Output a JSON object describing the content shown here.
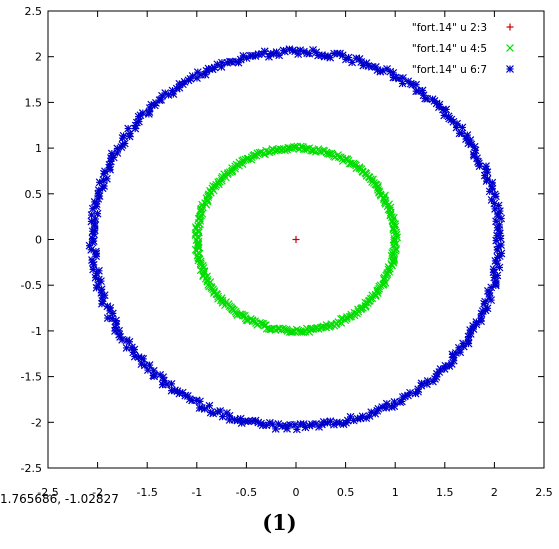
{
  "chart_data": {
    "type": "scatter",
    "title": "",
    "xlabel": "",
    "ylabel": "",
    "xlim": [
      -2.5,
      2.5
    ],
    "ylim": [
      -2.5,
      2.5
    ],
    "xticks": [
      "-2.5",
      "-2",
      "-1.5",
      "-1",
      "-0.5",
      "0",
      "0.5",
      "1",
      "1.5",
      "2",
      "2.5"
    ],
    "yticks": [
      "2.5",
      "2",
      "1.5",
      "1",
      "0.5",
      "0",
      "-0.5",
      "-1",
      "-1.5",
      "-2",
      "-2.5"
    ],
    "grid": false,
    "legend_position": "top-right",
    "series": [
      {
        "name": "\"fort.14\" u 2:3",
        "marker": "plus",
        "color": "#cc0000",
        "shape": "point",
        "center": [
          0,
          0
        ],
        "points": [
          [
            0,
            0
          ]
        ]
      },
      {
        "name": "\"fort.14\" u 4:5",
        "marker": "cross",
        "color": "#00dd00",
        "shape": "ring",
        "center": [
          0,
          0
        ],
        "radius": 1.0,
        "radius_jitter": 0.02,
        "count": 360
      },
      {
        "name": "\"fort.14\" u 6:7",
        "marker": "star",
        "color": "#0000cc",
        "shape": "ring",
        "center": [
          0,
          0
        ],
        "radius": 2.05,
        "radius_jitter": 0.035,
        "count": 420
      }
    ]
  },
  "status": {
    "coordinates": "1.765686, -1.02827"
  },
  "caption": "(1)"
}
